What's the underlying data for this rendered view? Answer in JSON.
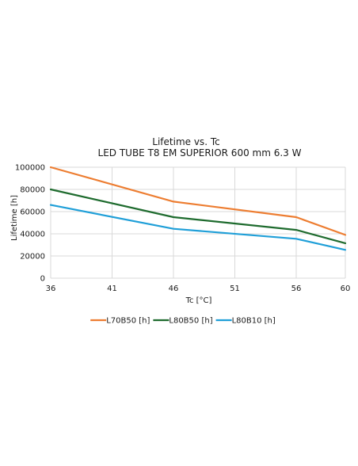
{
  "chart_data": {
    "type": "line",
    "title": "Lifetime vs. Tc",
    "subtitle": "LED TUBE T8 EM SUPERIOR 600 mm 6.3 W",
    "xlabel": "Tc [°C]",
    "ylabel": "Lifetime [h]",
    "x": [
      36,
      46,
      56,
      60
    ],
    "x_ticks": [
      36,
      41,
      46,
      51,
      56,
      60
    ],
    "xlim": [
      36,
      60
    ],
    "ylim": [
      0,
      100000
    ],
    "y_ticks": [
      0,
      20000,
      40000,
      60000,
      80000,
      100000
    ],
    "grid": true,
    "legend_position": "bottom",
    "series": [
      {
        "name": "L70B50 [h]",
        "color": "#ed7d31",
        "values": [
          100000,
          69000,
          55000,
          39000
        ]
      },
      {
        "name": "L80B50 [h]",
        "color": "#1e6b2e",
        "values": [
          80000,
          55000,
          43500,
          31500
        ]
      },
      {
        "name": "L80B10 [h]",
        "color": "#1f9fd8",
        "values": [
          66000,
          44500,
          35500,
          25500
        ]
      }
    ]
  }
}
